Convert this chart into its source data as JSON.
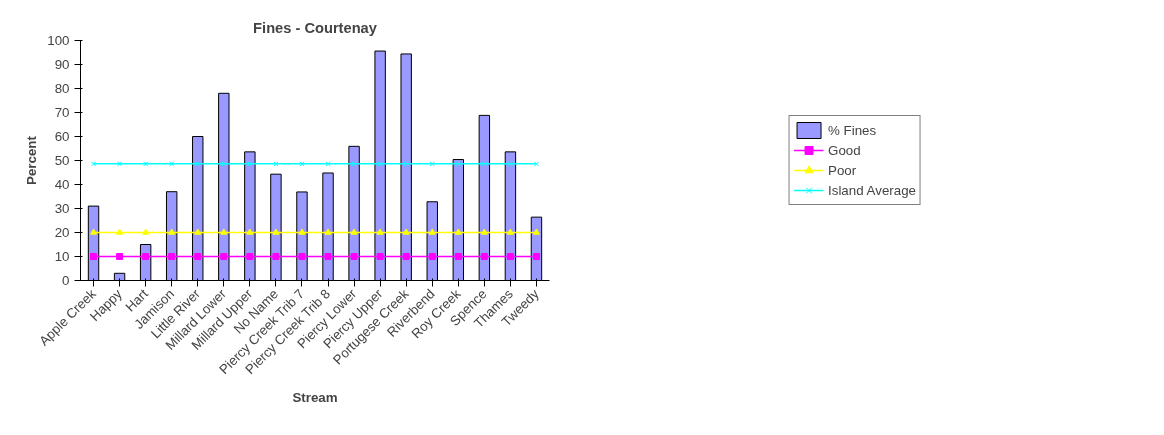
{
  "chart_data": {
    "type": "bar",
    "title": "Fines - Courtenay",
    "xlabel": "Stream",
    "ylabel": "Percent",
    "categories": [
      "Apple Creek",
      "Happy",
      "Hart",
      "Jamison",
      "Little River",
      "Millard Lower",
      "Millard Upper",
      "No Name",
      "Piercy Creek Trib 7",
      "Piercy Creek Trib 8",
      "Piercy Lower",
      "Piercy Upper",
      "Portugese Creek",
      "Riverbend",
      "Roy Creek",
      "Spence",
      "Thames",
      "Tweedy"
    ],
    "series": [
      {
        "name": "% Fines",
        "color": "#9999ff",
        "values": [
          31,
          3,
          15,
          37,
          60,
          78,
          53.6,
          44.3,
          36.9,
          44.8,
          55.9,
          95.6,
          94.4,
          32.8,
          50.4,
          68.8,
          53.6,
          26.4
        ]
      },
      {
        "name": "Good",
        "color": "#ff00ff",
        "type": "line",
        "marker": "square",
        "values": [
          10,
          10,
          10,
          10,
          10,
          10,
          10,
          10,
          10,
          10,
          10,
          10,
          10,
          10,
          10,
          10,
          10,
          10
        ]
      },
      {
        "name": "Poor",
        "color": "#ffff00",
        "type": "line",
        "marker": "triangle",
        "values": [
          20,
          20,
          20,
          20,
          20,
          20,
          20,
          20,
          20,
          20,
          20,
          20,
          20,
          20,
          20,
          20,
          20,
          20
        ]
      },
      {
        "name": "Island Average",
        "color": "#00ffff",
        "type": "line",
        "marker": "cross",
        "values": [
          48.6,
          48.6,
          48.6,
          48.6,
          48.6,
          48.6,
          48.6,
          48.6,
          48.6,
          48.6,
          48.6,
          48.6,
          48.6,
          48.6,
          48.6,
          48.6,
          48.6,
          48.6
        ]
      }
    ],
    "ylim": [
      0,
      100
    ],
    "yticks": [
      0,
      10,
      20,
      30,
      40,
      50,
      60,
      70,
      80,
      90,
      100
    ],
    "grid": false,
    "legend": "right"
  }
}
